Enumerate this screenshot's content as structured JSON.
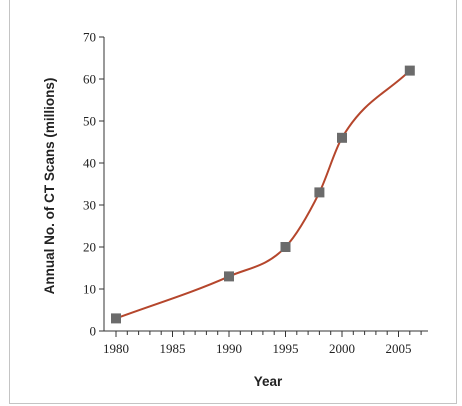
{
  "chart_data": {
    "type": "line",
    "title": "",
    "xlabel": "Year",
    "ylabel": "Annual No. of CT Scans (millions)",
    "xlim": [
      1980,
      2007
    ],
    "ylim": [
      0,
      70
    ],
    "x_ticks": [
      1980,
      1985,
      1990,
      1995,
      2000,
      2005
    ],
    "y_ticks": [
      0,
      10,
      20,
      30,
      40,
      50,
      60,
      70
    ],
    "series": [
      {
        "x": [
          1980,
          1990,
          1995,
          1998,
          2000,
          2006
        ],
        "values": [
          3,
          13,
          20,
          33,
          46,
          62
        ]
      }
    ],
    "grid": false,
    "legend": "none",
    "colors": {
      "line": "#b5462c",
      "marker": "#6b6b6b",
      "axis": "#333333"
    }
  }
}
